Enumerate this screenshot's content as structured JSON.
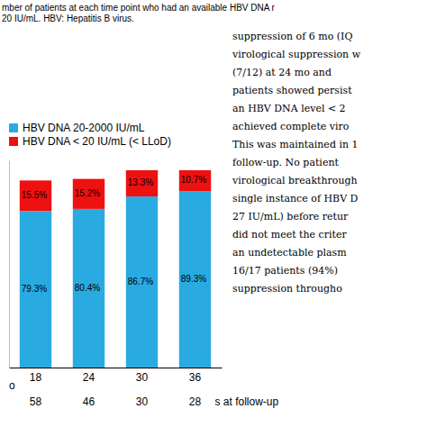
{
  "chart_data": {
    "type": "bar",
    "stacked": true,
    "categories": [
      "18",
      "24",
      "30",
      "36"
    ],
    "series": [
      {
        "name": "HBV DNA 20-2000 IU/mL",
        "color": "#29ABE2",
        "values": [
          79.3,
          80.4,
          86.7,
          89.3
        ],
        "value_labels": [
          "79.3%",
          "80.4%",
          "86.7%",
          "89.3%"
        ]
      },
      {
        "name": "HBV DNA < 20 IU/mL (< LLoD)",
        "color": "#EE1111",
        "values": [
          15.5,
          15.2,
          13.3,
          10.7
        ],
        "value_labels": [
          "15.5%",
          "15.2%",
          "13.3%",
          "10.7%"
        ]
      }
    ],
    "ylim": [
      0,
      105
    ],
    "data_labels": true,
    "tick_labels": "x",
    "n_values": [
      58,
      46,
      30,
      28
    ],
    "annotations": [
      "mber of patients at each time point who had an available HBV DNA r",
      "20 IU/mL. HBV: Hepatitis B virus.",
      "suppression of 6 mo (IQ",
      "virological suppression w",
      "(7/12) at 24 mo and",
      "patients showed persist",
      "an HBV DNA level < 2",
      "achieved complete viro",
      "This was maintained in 1",
      "follow-up.  No patient",
      "virological breakthrough",
      "single instance of HBV D",
      "27 IU/mL) before retur",
      "did not meet the criter",
      "an undetectable plasm",
      "16/17 patients (94%)",
      "suppression througho",
      "o",
      "s at follow-up"
    ]
  }
}
